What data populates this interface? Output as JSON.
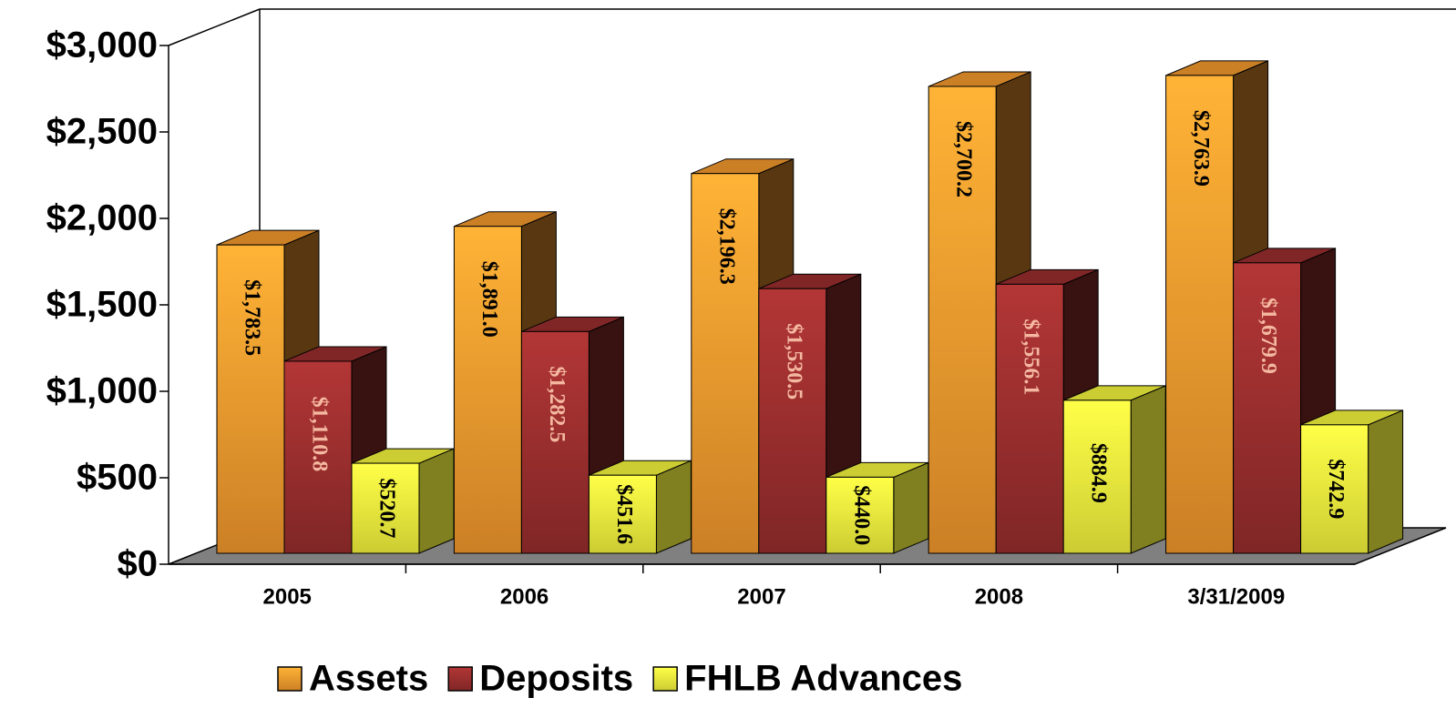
{
  "chart_data": {
    "type": "bar3d",
    "categories": [
      "2005",
      "2006",
      "2007",
      "2008",
      "3/31/2009"
    ],
    "series": [
      {
        "name": "Assets",
        "color": "#ffa030",
        "values": [
          1783.5,
          1891.0,
          2196.3,
          2700.2,
          2763.9
        ],
        "value_labels": [
          "$1,783.5",
          "$1,891.0",
          "$2,196.3",
          "$2,700.2",
          "$2,763.9"
        ]
      },
      {
        "name": "Deposits",
        "color": "#a03030",
        "values": [
          1110.8,
          1282.5,
          1530.5,
          1556.1,
          1679.9
        ],
        "value_labels": [
          "$1,110.8",
          "$1,282.5",
          "$1,530.5",
          "$1,556.1",
          "$1,679.9"
        ]
      },
      {
        "name": "FHLB Advances",
        "color": "#ffff40",
        "values": [
          520.7,
          451.6,
          440.0,
          884.9,
          742.9
        ],
        "value_labels": [
          "$520.7",
          "$451.6",
          "$440.0",
          "$884.9",
          "$742.9"
        ]
      }
    ],
    "ylim": [
      0,
      3000
    ],
    "yticks": [
      {
        "value": 0,
        "label": "$0"
      },
      {
        "value": 500,
        "label": "$500"
      },
      {
        "value": 1000,
        "label": "$1,000"
      },
      {
        "value": 1500,
        "label": "$1,500"
      },
      {
        "value": 2000,
        "label": "$2,000"
      },
      {
        "value": 2500,
        "label": "$2,500"
      },
      {
        "value": 3000,
        "label": "$3,000"
      }
    ],
    "legend": "bottom"
  }
}
